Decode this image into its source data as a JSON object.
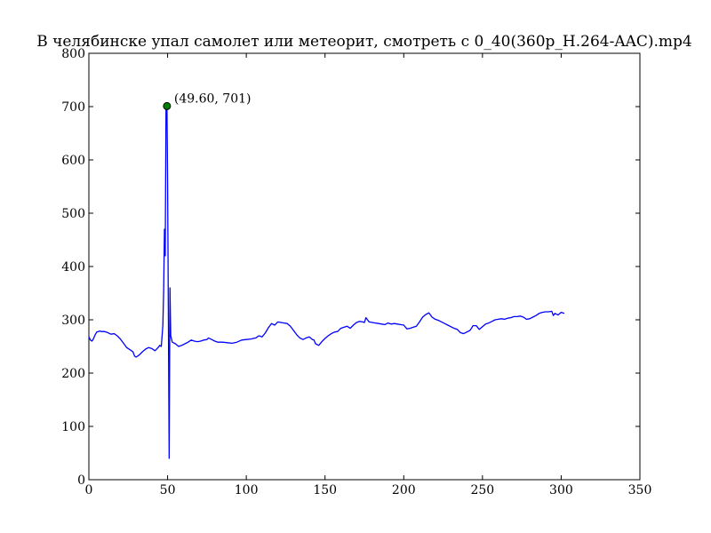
{
  "chart_data": {
    "type": "line",
    "title": "В челябинске упал самолет или метеорит, смотреть с 0_40(360p_H.264-AAC).mp4",
    "xlabel": "",
    "ylabel": "",
    "xlim": [
      0,
      350
    ],
    "ylim": [
      0,
      800
    ],
    "xticks": [
      0,
      50,
      100,
      150,
      200,
      250,
      300,
      350
    ],
    "yticks": [
      0,
      100,
      200,
      300,
      400,
      500,
      600,
      700,
      800
    ],
    "grid": false,
    "series": [
      {
        "color": "#0000ff",
        "x": [
          0,
          1,
          2,
          3,
          4,
          5,
          6,
          7,
          8,
          10,
          12,
          14,
          16,
          18,
          20,
          22,
          24,
          26,
          28,
          29,
          30,
          32,
          34,
          36,
          38,
          40,
          42,
          44,
          45,
          46,
          47,
          47.5,
          48,
          48.5,
          49,
          49.6,
          50,
          50.5,
          51,
          51.5,
          52,
          53,
          55,
          57,
          59,
          61,
          63,
          65,
          67,
          69,
          71,
          73,
          75,
          76,
          78,
          80,
          82,
          85,
          88,
          91,
          94,
          97,
          100,
          103,
          106,
          108,
          110,
          112,
          114,
          116,
          118,
          120,
          122,
          124,
          126,
          128,
          130,
          132,
          134,
          136,
          138,
          140,
          142,
          143,
          144,
          146,
          148,
          150,
          152,
          154,
          156,
          158,
          160,
          162,
          164,
          166,
          168,
          170,
          172,
          174,
          175,
          176,
          178,
          180,
          182,
          184,
          186,
          188,
          190,
          192,
          194,
          196,
          198,
          200,
          202,
          204,
          206,
          208,
          210,
          212,
          214,
          216,
          218,
          220,
          222,
          224,
          226,
          228,
          230,
          232,
          234,
          236,
          238,
          240,
          242,
          243,
          244,
          246,
          248,
          250,
          252,
          254,
          256,
          258,
          260,
          262,
          264,
          266,
          268,
          270,
          272,
          274,
          276,
          278,
          280,
          282,
          284,
          286,
          288,
          290,
          292,
          294,
          295,
          296,
          298,
          300,
          302
        ],
        "y": [
          268,
          262,
          260,
          265,
          272,
          277,
          278,
          279,
          278,
          278,
          276,
          273,
          274,
          270,
          264,
          256,
          248,
          244,
          240,
          232,
          230,
          234,
          240,
          245,
          248,
          246,
          242,
          248,
          252,
          250,
          290,
          355,
          470,
          420,
          701,
          701,
          560,
          300,
          40,
          360,
          270,
          258,
          255,
          250,
          252,
          255,
          258,
          262,
          260,
          259,
          260,
          262,
          263,
          266,
          263,
          260,
          258,
          258,
          257,
          256,
          258,
          262,
          263,
          264,
          266,
          270,
          268,
          275,
          285,
          293,
          290,
          296,
          295,
          294,
          293,
          288,
          280,
          272,
          266,
          263,
          266,
          268,
          263,
          262,
          255,
          252,
          259,
          265,
          270,
          274,
          277,
          278,
          284,
          286,
          288,
          284,
          290,
          295,
          297,
          296,
          295,
          304,
          296,
          295,
          294,
          293,
          292,
          291,
          294,
          292,
          293,
          292,
          291,
          290,
          283,
          284,
          286,
          288,
          296,
          305,
          310,
          313,
          305,
          301,
          299,
          296,
          293,
          290,
          287,
          284,
          282,
          276,
          274,
          277,
          280,
          284,
          289,
          289,
          282,
          287,
          292,
          294,
          297,
          300,
          301,
          302,
          301,
          303,
          304,
          306,
          306,
          307,
          305,
          301,
          302,
          305,
          308,
          312,
          314,
          315,
          315,
          316,
          308,
          312,
          309,
          314,
          312
        ]
      }
    ],
    "annotations": [
      {
        "x": 49.6,
        "y": 701,
        "text": "(49.60, 701)",
        "marker": "circle",
        "color": "#008000"
      }
    ]
  }
}
